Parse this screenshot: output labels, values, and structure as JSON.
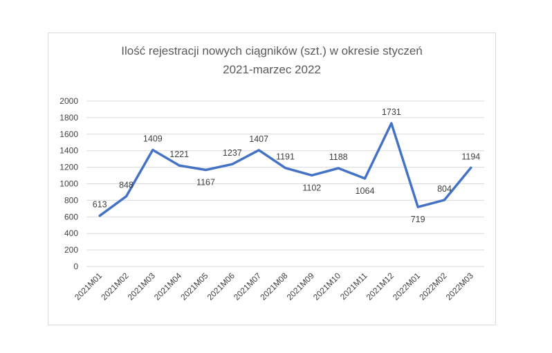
{
  "chart_data": {
    "type": "line",
    "title": [
      "Ilość rejestracji nowych ciągników (szt.) w okresie styczeń",
      "2021-marzec 2022"
    ],
    "categories": [
      "2021M01",
      "2021M02",
      "2021M03",
      "2021M04",
      "2021M05",
      "2021M06",
      "2021M07",
      "2021M08",
      "2021M09",
      "2021M10",
      "2021M11",
      "2021M12",
      "2022M01",
      "2022M02",
      "2022M03"
    ],
    "series": [
      {
        "values": [
          613,
          848,
          1409,
          1221,
          1167,
          1237,
          1407,
          1191,
          1102,
          1188,
          1064,
          1731,
          719,
          804,
          1194
        ]
      }
    ],
    "y_ticks": [
      0,
      200,
      400,
      600,
      800,
      1000,
      1200,
      1400,
      1600,
      1800,
      2000
    ],
    "ylim": [
      0,
      2000
    ],
    "grid": true,
    "legend": "none",
    "line_color": "#4472c4",
    "grid_color": "#d9d9d9"
  }
}
